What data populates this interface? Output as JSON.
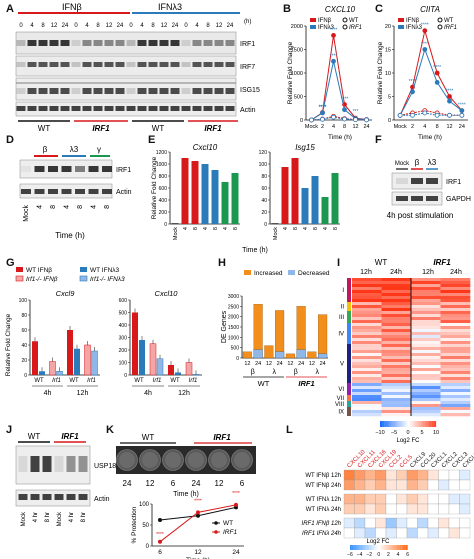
{
  "panel_letters": [
    "A",
    "B",
    "C",
    "D",
    "E",
    "F",
    "G",
    "H",
    "I",
    "J",
    "K",
    "L"
  ],
  "panelA": {
    "ifnb_label": "IFNβ",
    "ifnl3_label": "IFNλ3",
    "time_label": "(h)",
    "time_points": [
      "0",
      "4",
      "8",
      "12",
      "24",
      "0",
      "4",
      "8",
      "12",
      "24",
      "0",
      "4",
      "8",
      "12",
      "24",
      "0",
      "4",
      "8",
      "12",
      "24"
    ],
    "rows": [
      "IRF1",
      "IRF7",
      "ISG15",
      "Actin"
    ],
    "groups": [
      "WT",
      "IRF1",
      "WT",
      "IRF1"
    ]
  },
  "panelB": {
    "title": "CXCL10",
    "ylabel": "Relative Fold Change",
    "xlabel": "Time (h)",
    "legend": [
      "IFNβ",
      "IFNλ3",
      "WT",
      "IRF1"
    ],
    "stars": [
      "****",
      "****",
      "****",
      "****",
      "****",
      "***"
    ]
  },
  "panelC": {
    "title": "CIITA",
    "ylabel": "Relative Fold Change",
    "xlabel": "Time (h)",
    "legend": [
      "IFNβ",
      "IFNλ3",
      "WT",
      "IRF1"
    ],
    "stars": [
      "****",
      "****",
      "****",
      "****",
      "****",
      "****"
    ]
  },
  "panelD": {
    "treatments": [
      "β",
      "λ3",
      "γ"
    ],
    "lanes": [
      "Mock",
      "4",
      "8",
      "4",
      "8",
      "4",
      "8"
    ],
    "rows": [
      "IRF1",
      "Actin"
    ],
    "xlabel": "Time (h)"
  },
  "panelE": {
    "ylabel": "Relative Fold Change",
    "xlabel": "Time (h)",
    "subplots": [
      {
        "title": "Cxcl10",
        "ticks": [
          "Mock",
          "4",
          "8",
          "4",
          "8",
          "4",
          "8"
        ]
      },
      {
        "title": "Isg15",
        "ticks": [
          "Mock",
          "4",
          "8",
          "4",
          "8",
          "4",
          "8"
        ]
      }
    ]
  },
  "panelF": {
    "lanes": [
      "Mock",
      "β",
      "λ3"
    ],
    "rows": [
      "IRF1",
      "GAPDH"
    ],
    "caption": "4h post stimulation"
  },
  "panelG": {
    "legend": [
      "WT IFNβ",
      "WT IFNλ3",
      "Irf1-/- IFNβ",
      "Irf1-/- IFNλ3"
    ],
    "ylabel": "Relative Fold Change",
    "subplots": [
      {
        "title": "Cxcl9",
        "times": [
          "4h",
          "12h"
        ],
        "groups": [
          "WT",
          "Irf1",
          "WT",
          "Irf1"
        ]
      },
      {
        "title": "Cxcl10",
        "times": [
          "4h",
          "12h"
        ],
        "groups": [
          "WT",
          "Irf1",
          "WT",
          "Irf1"
        ]
      }
    ]
  },
  "panelH": {
    "legend": [
      "Increased",
      "Decreased"
    ],
    "ylabel": "DE Genes",
    "ticks": [
      "12",
      "24",
      "12",
      "24",
      "12",
      "24",
      "12",
      "24"
    ],
    "treatments": [
      "β",
      "λ",
      "β",
      "λ"
    ],
    "groups": [
      "WT",
      "IRF1"
    ]
  },
  "panelI": {
    "groups": [
      "WT",
      "IRF1"
    ],
    "times": [
      "12h",
      "24h",
      "12h",
      "24h"
    ],
    "clusters": [
      "I",
      "II",
      "III",
      "IV",
      "V",
      "VI",
      "VII",
      "VIII",
      "IX"
    ],
    "colorbar_ticks": [
      "−10",
      "−5",
      "0",
      "5",
      "10"
    ],
    "colorbar_label": "Log2 FC"
  },
  "panelJ": {
    "groups": [
      "WT",
      "IRF1"
    ],
    "lanes": [
      "Mock",
      "4 hr",
      "8 hr",
      "Mock",
      "4 hr",
      "8 hr"
    ],
    "rows": [
      "USP18",
      "Actin"
    ]
  },
  "panelK": {
    "groups": [
      "WT",
      "IRF1"
    ],
    "plate_labels": [
      "24",
      "12",
      "6",
      "24",
      "12",
      "6"
    ],
    "plate_time": "Time (h)",
    "ylabel": "% Protection",
    "xlabel": "Time (h)",
    "legend": [
      "WT",
      "IRF1"
    ],
    "stars": [
      "****",
      "****",
      "****"
    ]
  },
  "panelL": {
    "genes": [
      "CXCL10",
      "CXCL11",
      "CXCL16",
      "CXCL19",
      "CCL2",
      "CCL5",
      "CXCL9",
      "CCL20",
      "CXCL1",
      "CXCL2",
      "CXCL3",
      "CXCL5"
    ],
    "rows": [
      "WT IFNβ 12h",
      "WT IFNβ 24h",
      "WT IFNλ 12h",
      "WT IFNλ 24h",
      "IRF1 IFNβ 12h",
      "IRF1 IFNλ 24h"
    ],
    "colorbar_ticks": [
      "−6",
      "−4",
      "−2",
      "0",
      "2",
      "4",
      "6"
    ],
    "colorbar_label": "Log2 FC"
  },
  "chart_data": [
    {
      "panel": "B",
      "type": "line",
      "title": "CXCL10",
      "categories": [
        "Mock",
        "2",
        "4",
        "8",
        "12",
        "24"
      ],
      "series": [
        {
          "name": "IFNβ WT",
          "values": [
            1,
            160,
            1800,
            330,
            40,
            10
          ]
        },
        {
          "name": "IFNλ3 WT",
          "values": [
            1,
            150,
            1250,
            220,
            30,
            8
          ]
        },
        {
          "name": "IFNβ IRF1",
          "values": [
            1,
            20,
            80,
            30,
            10,
            3
          ]
        },
        {
          "name": "IFNλ3 IRF1",
          "values": [
            1,
            15,
            60,
            20,
            8,
            2
          ]
        }
      ],
      "ylim": [
        0,
        2000
      ],
      "yticks": [
        0,
        500,
        1000,
        1500,
        2000
      ],
      "xlabel": "Time (h)",
      "ylabel": "Relative Fold Change"
    },
    {
      "panel": "C",
      "type": "line",
      "title": "CIITA",
      "categories": [
        "Mock",
        "2",
        "4",
        "8",
        "12",
        "24"
      ],
      "series": [
        {
          "name": "IFNβ WT",
          "values": [
            1,
            7,
            19,
            10,
            5,
            2
          ]
        },
        {
          "name": "IFNλ3 WT",
          "values": [
            1,
            6,
            15,
            8,
            4,
            2
          ]
        },
        {
          "name": "IFNβ IRF1",
          "values": [
            1,
            1.5,
            2,
            1.5,
            1,
            1
          ]
        },
        {
          "name": "IFNλ3 IRF1",
          "values": [
            1,
            1,
            1.5,
            1,
            1,
            1
          ]
        }
      ],
      "ylim": [
        0,
        20
      ],
      "yticks": [
        0,
        5,
        10,
        15,
        20
      ],
      "xlabel": "Time (h)",
      "ylabel": "Relative Fold Change"
    },
    {
      "panel": "E",
      "type": "bar",
      "title": "Cxcl10",
      "categories": [
        "Mock",
        "4",
        "8",
        "4",
        "8",
        "4",
        "8"
      ],
      "values": [
        1,
        1100,
        1050,
        1000,
        900,
        700,
        850
      ],
      "ylim": [
        0,
        1200
      ],
      "yticks": [
        0,
        200,
        400,
        600,
        800,
        1000,
        1200
      ]
    },
    {
      "panel": "E",
      "type": "bar",
      "title": "Isg15",
      "categories": [
        "Mock",
        "4",
        "8",
        "4",
        "8",
        "4",
        "8"
      ],
      "values": [
        1,
        95,
        110,
        60,
        80,
        45,
        85
      ],
      "ylim": [
        0,
        120
      ],
      "yticks": [
        0,
        20,
        40,
        60,
        80,
        100,
        120
      ]
    },
    {
      "panel": "G",
      "type": "bar",
      "title": "Cxcl9",
      "categories": [
        "4h WT",
        "4h Irf1",
        "12h WT",
        "12h Irf1"
      ],
      "series": [
        {
          "name": "WT IFNβ",
          "values": [
            45,
            0,
            60,
            0
          ]
        },
        {
          "name": "WT IFNλ3",
          "values": [
            5,
            0,
            35,
            0
          ]
        },
        {
          "name": "Irf1-/- IFNβ",
          "values": [
            0,
            18,
            0,
            40
          ]
        },
        {
          "name": "Irf1-/- IFNλ3",
          "values": [
            0,
            5,
            0,
            32
          ]
        }
      ],
      "ylim": [
        0,
        100
      ],
      "yticks": [
        0,
        20,
        40,
        60,
        80,
        100
      ]
    },
    {
      "panel": "G",
      "type": "bar",
      "title": "Cxcl10",
      "categories": [
        "4h WT",
        "4h Irf1",
        "12h WT",
        "12h Irf1"
      ],
      "series": [
        {
          "name": "WT IFNβ",
          "values": [
            500,
            0,
            80,
            0
          ]
        },
        {
          "name": "WT IFNλ3",
          "values": [
            280,
            0,
            20,
            0
          ]
        },
        {
          "name": "Irf1-/- IFNβ",
          "values": [
            0,
            250,
            0,
            100
          ]
        },
        {
          "name": "Irf1-/- IFNλ3",
          "values": [
            0,
            130,
            0,
            5
          ]
        }
      ],
      "ylim": [
        0,
        600
      ],
      "yticks": [
        0,
        100,
        200,
        300,
        400,
        500,
        600
      ]
    },
    {
      "panel": "H",
      "type": "bar",
      "categories": [
        "12",
        "24",
        "12",
        "24",
        "12",
        "24",
        "12",
        "24"
      ],
      "series": [
        {
          "name": "Increased",
          "values": [
            300,
            2600,
            600,
            2300,
            200,
            2500,
            300,
            2100
          ]
        },
        {
          "name": "Decreased",
          "values": [
            0,
            400,
            0,
            300,
            0,
            400,
            0,
            200
          ]
        }
      ],
      "ylim": [
        0,
        3000
      ],
      "yticks": [
        0,
        500,
        1000,
        1500,
        2000,
        2500,
        3000
      ],
      "ylabel": "DE Genes"
    },
    {
      "panel": "K",
      "type": "line",
      "categories": [
        "6",
        "12",
        "24"
      ],
      "series": [
        {
          "name": "WT",
          "values": [
            62,
            72,
            92
          ]
        },
        {
          "name": "IRF1",
          "values": [
            10,
            80,
            98
          ]
        }
      ],
      "ylim": [
        0,
        100
      ],
      "yticks": [
        0,
        50,
        100
      ],
      "xlabel": "Time (h)",
      "ylabel": "% Protection"
    }
  ],
  "colors": {
    "red": "#d7191c",
    "blue": "#2b7bba",
    "green": "#1a9850",
    "orange": "#f28e1c",
    "pink": "#f4a6a6",
    "lightblue": "#8fb8e8",
    "ink": "#111111"
  }
}
